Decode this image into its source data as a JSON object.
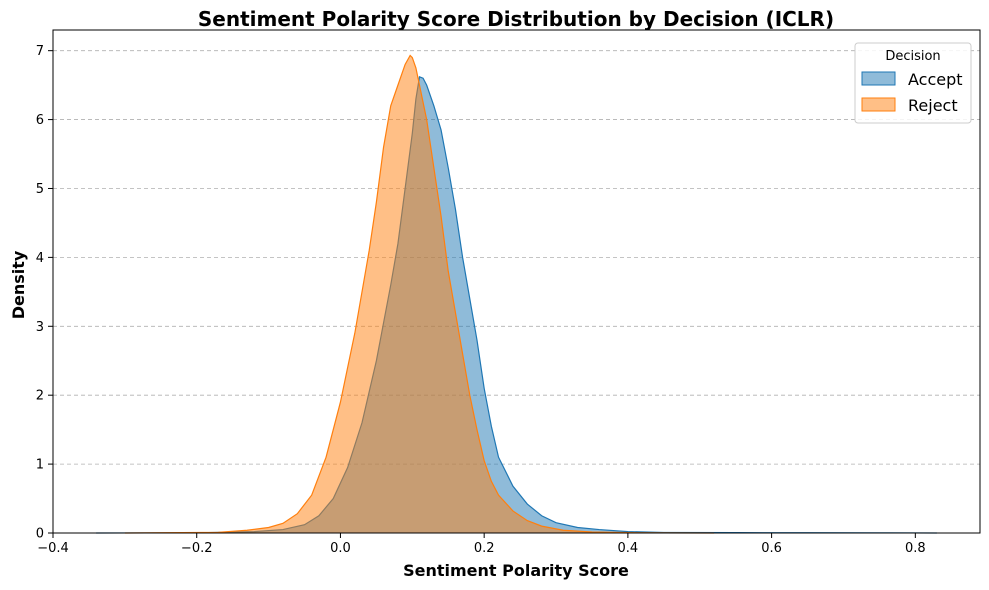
{
  "chart_data": {
    "type": "area",
    "title": "Sentiment Polarity Score Distribution by Decision (ICLR)",
    "xlabel": "Sentiment Polarity Score",
    "ylabel": "Density",
    "xlim": [
      -0.4,
      0.89
    ],
    "ylim": [
      0,
      7.3
    ],
    "xticks": [
      "−0.4",
      "−0.2",
      "0.0",
      "0.2",
      "0.4",
      "0.6",
      "0.8"
    ],
    "xtick_values": [
      -0.4,
      -0.2,
      0.0,
      0.2,
      0.4,
      0.6,
      0.8
    ],
    "yticks": [
      "0",
      "1",
      "2",
      "3",
      "4",
      "5",
      "6",
      "7"
    ],
    "ytick_values": [
      0,
      1,
      2,
      3,
      4,
      5,
      6,
      7
    ],
    "grid": "y-dashed",
    "legend": {
      "title": "Decision",
      "placement": "top-right"
    },
    "series": [
      {
        "name": "Accept",
        "color": "#1f77b4",
        "points": [
          [
            -0.34,
            0
          ],
          [
            -0.2,
            0.003
          ],
          [
            -0.12,
            0.02
          ],
          [
            -0.08,
            0.05
          ],
          [
            -0.05,
            0.12
          ],
          [
            -0.03,
            0.25
          ],
          [
            -0.01,
            0.5
          ],
          [
            0.01,
            0.95
          ],
          [
            0.03,
            1.6
          ],
          [
            0.05,
            2.5
          ],
          [
            0.07,
            3.6
          ],
          [
            0.08,
            4.2
          ],
          [
            0.09,
            5.0
          ],
          [
            0.1,
            5.8
          ],
          [
            0.105,
            6.3
          ],
          [
            0.11,
            6.62
          ],
          [
            0.115,
            6.6
          ],
          [
            0.12,
            6.5
          ],
          [
            0.13,
            6.2
          ],
          [
            0.14,
            5.85
          ],
          [
            0.15,
            5.3
          ],
          [
            0.16,
            4.7
          ],
          [
            0.17,
            4.0
          ],
          [
            0.18,
            3.4
          ],
          [
            0.19,
            2.8
          ],
          [
            0.2,
            2.1
          ],
          [
            0.21,
            1.55
          ],
          [
            0.22,
            1.1
          ],
          [
            0.24,
            0.68
          ],
          [
            0.26,
            0.42
          ],
          [
            0.28,
            0.25
          ],
          [
            0.3,
            0.15
          ],
          [
            0.33,
            0.08
          ],
          [
            0.36,
            0.05
          ],
          [
            0.4,
            0.02
          ],
          [
            0.45,
            0.008
          ],
          [
            0.55,
            0.005
          ],
          [
            0.65,
            0.004
          ],
          [
            0.75,
            0.003
          ],
          [
            0.83,
            0
          ]
        ]
      },
      {
        "name": "Reject",
        "color": "#ff7f0e",
        "points": [
          [
            -0.3,
            0
          ],
          [
            -0.22,
            0.005
          ],
          [
            -0.17,
            0.01
          ],
          [
            -0.13,
            0.04
          ],
          [
            -0.1,
            0.08
          ],
          [
            -0.08,
            0.14
          ],
          [
            -0.06,
            0.28
          ],
          [
            -0.04,
            0.55
          ],
          [
            -0.02,
            1.1
          ],
          [
            0.0,
            1.9
          ],
          [
            0.02,
            2.9
          ],
          [
            0.04,
            4.1
          ],
          [
            0.05,
            4.8
          ],
          [
            0.06,
            5.6
          ],
          [
            0.07,
            6.2
          ],
          [
            0.08,
            6.5
          ],
          [
            0.09,
            6.8
          ],
          [
            0.097,
            6.93
          ],
          [
            0.1,
            6.9
          ],
          [
            0.105,
            6.75
          ],
          [
            0.11,
            6.5
          ],
          [
            0.12,
            6.0
          ],
          [
            0.13,
            5.3
          ],
          [
            0.14,
            4.6
          ],
          [
            0.15,
            3.8
          ],
          [
            0.16,
            3.2
          ],
          [
            0.17,
            2.6
          ],
          [
            0.18,
            2.0
          ],
          [
            0.19,
            1.5
          ],
          [
            0.2,
            1.05
          ],
          [
            0.21,
            0.75
          ],
          [
            0.22,
            0.55
          ],
          [
            0.24,
            0.32
          ],
          [
            0.26,
            0.18
          ],
          [
            0.28,
            0.1
          ],
          [
            0.31,
            0.04
          ],
          [
            0.35,
            0.015
          ],
          [
            0.4,
            0.005
          ],
          [
            0.45,
            0.002
          ],
          [
            0.52,
            0
          ]
        ]
      }
    ]
  }
}
